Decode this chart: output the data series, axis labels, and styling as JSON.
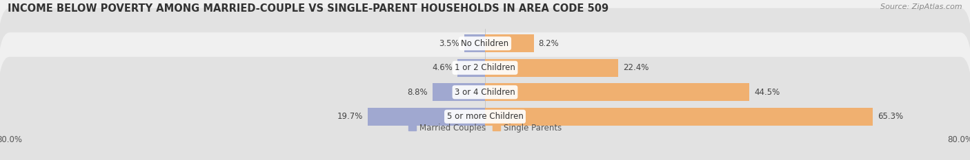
{
  "title": "INCOME BELOW POVERTY AMONG MARRIED-COUPLE VS SINGLE-PARENT HOUSEHOLDS IN AREA CODE 509",
  "source": "Source: ZipAtlas.com",
  "categories": [
    "No Children",
    "1 or 2 Children",
    "3 or 4 Children",
    "5 or more Children"
  ],
  "married_values": [
    3.5,
    4.6,
    8.8,
    19.7
  ],
  "single_values": [
    8.2,
    22.4,
    44.5,
    65.3
  ],
  "married_color": "#a0a8d0",
  "single_color": "#f0b070",
  "bar_height": 0.72,
  "xlim": [
    -80,
    80
  ],
  "title_fontsize": 10.5,
  "source_fontsize": 8,
  "label_fontsize": 8.5,
  "tick_fontsize": 8.5,
  "bg_color": "#e8e8e8",
  "row_bg_light": "#f0f0f0",
  "row_bg_dark": "#e2e2e2",
  "legend_married": "Married Couples",
  "legend_single": "Single Parents",
  "center_label_bg": "#ffffff"
}
